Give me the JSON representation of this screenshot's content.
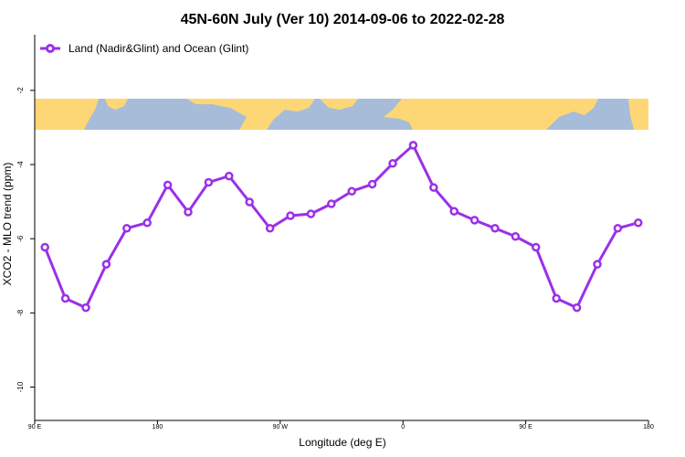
{
  "chart_data": {
    "type": "line",
    "title": "45N-60N July (Ver 10)   2014-09-06 to 2022-02-28",
    "x_label": "Longitude (deg E)",
    "y_label": "XCO2 - MLO trend (ppm)",
    "x": [
      97.5,
      112.5,
      127.5,
      142.5,
      157.5,
      172.5,
      187.5,
      202.5,
      217.5,
      232.5,
      247.5,
      262.5,
      277.5,
      292.5,
      307.5,
      322.5,
      337.5,
      352.5,
      367.5,
      382.5,
      397.5,
      412.5,
      427.5,
      442.5,
      457.5,
      472.5,
      487.5,
      502.5,
      517.5,
      532.5
    ],
    "series": [
      {
        "name": "Land (Nadir&Glint) and Ocean (Glint)",
        "color": "#9b30e8",
        "values": [
          -6.23,
          -7.61,
          -7.86,
          -6.69,
          -5.72,
          -5.57,
          -4.55,
          -5.28,
          -4.48,
          -4.31,
          -5.01,
          -5.72,
          -5.38,
          -5.33,
          -5.06,
          -4.72,
          -4.53,
          -3.97,
          -3.48,
          -4.62,
          -5.26,
          -5.5,
          -5.72,
          -5.94,
          -6.23,
          -7.61,
          -7.86,
          -6.69,
          -5.72,
          -5.57
        ]
      }
    ],
    "xlim": [
      90,
      540
    ],
    "xticks": [
      {
        "value": 90,
        "label": "90 E"
      },
      {
        "value": 180,
        "label": "180"
      },
      {
        "value": 270,
        "label": "90 W"
      },
      {
        "value": 360,
        "label": "0"
      },
      {
        "value": 450,
        "label": "90 E"
      },
      {
        "value": 540,
        "label": "180"
      }
    ],
    "ylim": [
      -10.9,
      -0.5
    ],
    "yticks": [
      -2,
      -4,
      -6,
      -8,
      -10
    ],
    "legend": "top-left"
  }
}
